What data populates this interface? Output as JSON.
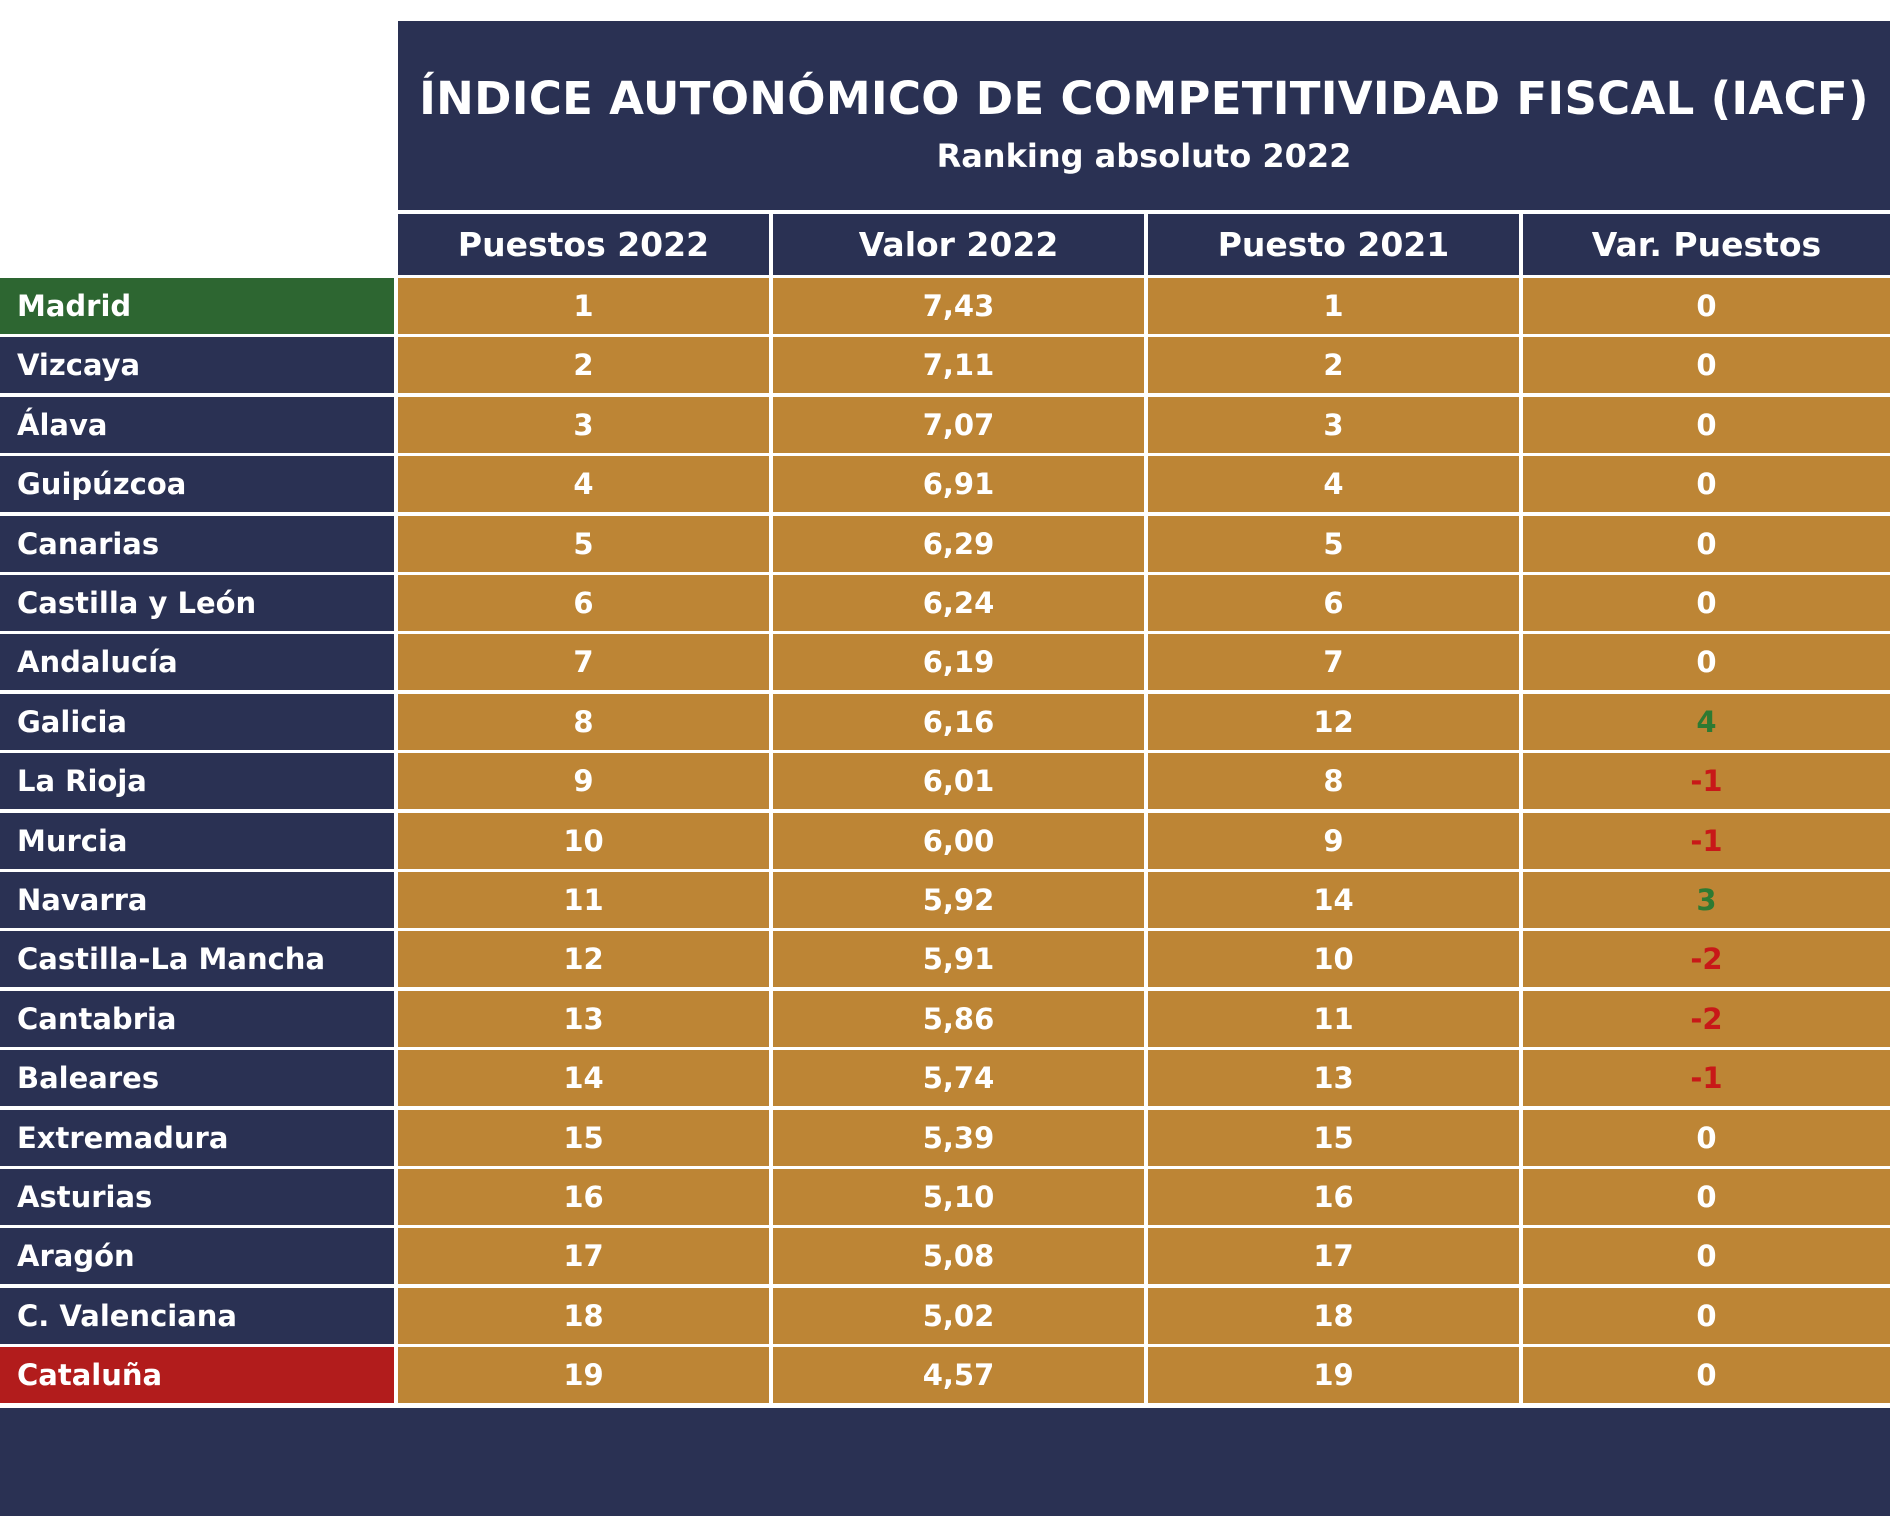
{
  "title": "ÍNDICE AUTONÓMICO DE COMPETITIVIDAD FISCAL (IACF)",
  "subtitle": "Ranking absoluto 2022",
  "columns": [
    "Puestos 2022",
    "Valor 2022",
    "Puesto 2021",
    "Var. Puestos"
  ],
  "colors": {
    "navy": "#2a3153",
    "gold": "#bd8535",
    "first_place": "#2d6631",
    "last_place": "#b21c1c",
    "positive_change": "#2d7a32",
    "negative_change": "#c81818"
  },
  "rows": [
    {
      "region": "Madrid",
      "puesto_2022": "1",
      "valor_2022": "7,43",
      "puesto_2021": "1",
      "var": "0"
    },
    {
      "region": "Vizcaya",
      "puesto_2022": "2",
      "valor_2022": "7,11",
      "puesto_2021": "2",
      "var": "0"
    },
    {
      "region": "Álava",
      "puesto_2022": "3",
      "valor_2022": "7,07",
      "puesto_2021": "3",
      "var": "0"
    },
    {
      "region": "Guipúzcoa",
      "puesto_2022": "4",
      "valor_2022": "6,91",
      "puesto_2021": "4",
      "var": "0"
    },
    {
      "region": "Canarias",
      "puesto_2022": "5",
      "valor_2022": "6,29",
      "puesto_2021": "5",
      "var": "0"
    },
    {
      "region": "Castilla y León",
      "puesto_2022": "6",
      "valor_2022": "6,24",
      "puesto_2021": "6",
      "var": "0"
    },
    {
      "region": "Andalucía",
      "puesto_2022": "7",
      "valor_2022": "6,19",
      "puesto_2021": "7",
      "var": "0"
    },
    {
      "region": "Galicia",
      "puesto_2022": "8",
      "valor_2022": "6,16",
      "puesto_2021": "12",
      "var": "4"
    },
    {
      "region": "La Rioja",
      "puesto_2022": "9",
      "valor_2022": "6,01",
      "puesto_2021": "8",
      "var": "-1"
    },
    {
      "region": "Murcia",
      "puesto_2022": "10",
      "valor_2022": "6,00",
      "puesto_2021": "9",
      "var": "-1"
    },
    {
      "region": "Navarra",
      "puesto_2022": "11",
      "valor_2022": "5,92",
      "puesto_2021": "14",
      "var": "3"
    },
    {
      "region": "Castilla-La Mancha",
      "puesto_2022": "12",
      "valor_2022": "5,91",
      "puesto_2021": "10",
      "var": "-2"
    },
    {
      "region": "Cantabria",
      "puesto_2022": "13",
      "valor_2022": "5,86",
      "puesto_2021": "11",
      "var": "-2"
    },
    {
      "region": "Baleares",
      "puesto_2022": "14",
      "valor_2022": "5,74",
      "puesto_2021": "13",
      "var": "-1"
    },
    {
      "region": "Extremadura",
      "puesto_2022": "15",
      "valor_2022": "5,39",
      "puesto_2021": "15",
      "var": "0"
    },
    {
      "region": "Asturias",
      "puesto_2022": "16",
      "valor_2022": "5,10",
      "puesto_2021": "16",
      "var": "0"
    },
    {
      "region": "Aragón",
      "puesto_2022": "17",
      "valor_2022": "5,08",
      "puesto_2021": "17",
      "var": "0"
    },
    {
      "region": "C. Valenciana",
      "puesto_2022": "18",
      "valor_2022": "5,02",
      "puesto_2021": "18",
      "var": "0"
    },
    {
      "region": "Cataluña",
      "puesto_2022": "19",
      "valor_2022": "4,57",
      "puesto_2021": "19",
      "var": "0"
    }
  ]
}
